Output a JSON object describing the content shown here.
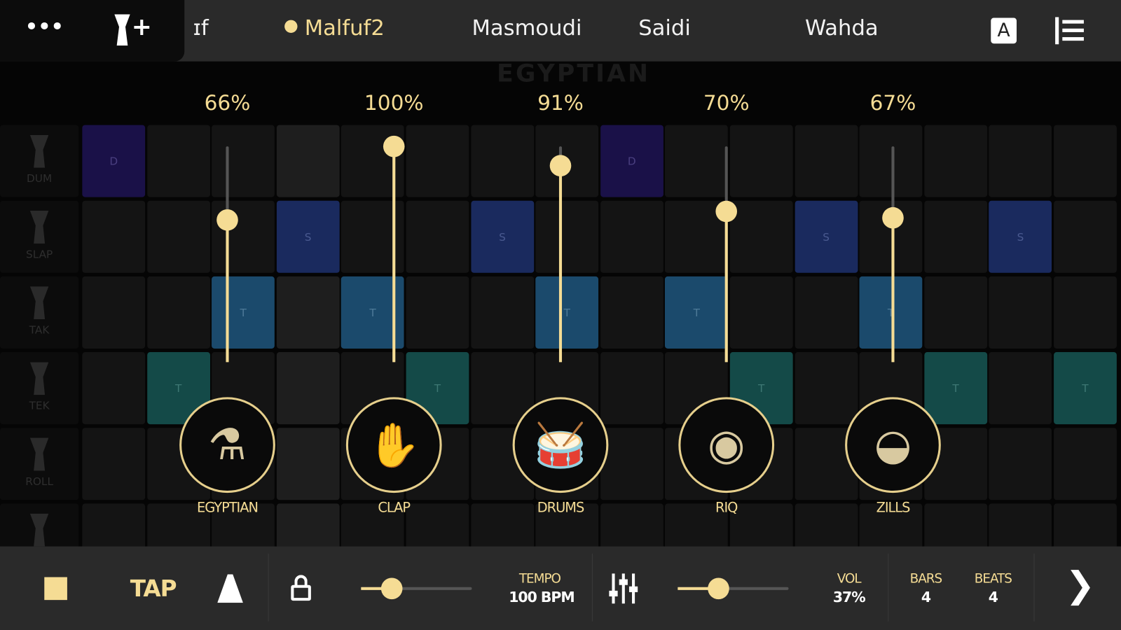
{
  "topbar": {
    "menu_icon": "more-horizontal-icon",
    "add_rhythm_icon": "doumbek-plus-icon",
    "tabs": [
      {
        "label": "ɪf",
        "active": false
      },
      {
        "label": "Malfuf2",
        "active": true
      },
      {
        "label": "Masmoudi",
        "active": false
      },
      {
        "label": "Saidi",
        "active": false
      },
      {
        "label": "Wahda",
        "active": false
      }
    ],
    "notation_button": "A",
    "sort_icon": "reorder-list-icon"
  },
  "watermark": "EGYPTIAN",
  "grid": {
    "rows": [
      {
        "label": "DUM",
        "type": "D",
        "cells": [
          "D",
          "",
          "",
          "",
          "",
          "",
          "",
          "",
          "D",
          "",
          "",
          "",
          "",
          "",
          "",
          ""
        ]
      },
      {
        "label": "SLAP",
        "type": "S",
        "cells": [
          "",
          "",
          "",
          "S",
          "",
          "",
          "S",
          "",
          "",
          "",
          "",
          "S",
          "",
          "",
          "S",
          ""
        ]
      },
      {
        "label": "TAK",
        "type": "T",
        "cells": [
          "",
          "",
          "T",
          "",
          "T",
          "",
          "",
          "T",
          "",
          "T",
          "",
          "",
          "T",
          "",
          "",
          ""
        ]
      },
      {
        "label": "TEK",
        "type": "K",
        "cells": [
          "",
          "T",
          "",
          "",
          "",
          "T",
          "",
          "",
          "",
          "",
          "T",
          "",
          "",
          "T",
          "",
          "T"
        ]
      },
      {
        "label": "ROLL",
        "type": "R",
        "cells": [
          "",
          "",
          "",
          "",
          "",
          "",
          "",
          "",
          "",
          "",
          "",
          "",
          "",
          "",
          "",
          ""
        ]
      },
      {
        "label": "",
        "type": "X",
        "cells": [
          "",
          "",
          "",
          "",
          "",
          "",
          "",
          "",
          "",
          "",
          "",
          "",
          "",
          "",
          "",
          ""
        ]
      }
    ],
    "playhead_column": 3
  },
  "mixer": [
    {
      "name": "EGYPTIAN",
      "volume_label": "66%",
      "volume": 66,
      "icon": "doumbek-icon"
    },
    {
      "name": "CLAP",
      "volume_label": "100%",
      "volume": 100,
      "icon": "clap-icon"
    },
    {
      "name": "DRUMS",
      "volume_label": "91%",
      "volume": 91,
      "icon": "drum-kit-icon"
    },
    {
      "name": "RIQ",
      "volume_label": "70%",
      "volume": 70,
      "icon": "tambourine-icon"
    },
    {
      "name": "ZILLS",
      "volume_label": "67%",
      "volume": 67,
      "icon": "cymbals-icon"
    }
  ],
  "bottombar": {
    "stop_icon": "stop-icon",
    "tap_label": "TAP",
    "metronome_icon": "metronome-icon",
    "lock_icon": "lock-icon",
    "tempo_slider_fraction": 0.28,
    "tempo_label": "TEMPO",
    "tempo_value": "100 BPM",
    "mixer_icon": "mixer-sliders-icon",
    "volume_slider_fraction": 0.37,
    "vol_label": "VOL",
    "vol_value": "37%",
    "bars_label": "BARS",
    "bars_value": "4",
    "beats_label": "BEATS",
    "beats_value": "4",
    "next_icon": "chevron-right-icon"
  },
  "colors": {
    "accent": "#f5dc94",
    "dum": "#1a1148",
    "slap": "#1a2a5e",
    "tak": "#1b4a6c",
    "tek": "#144a48"
  }
}
